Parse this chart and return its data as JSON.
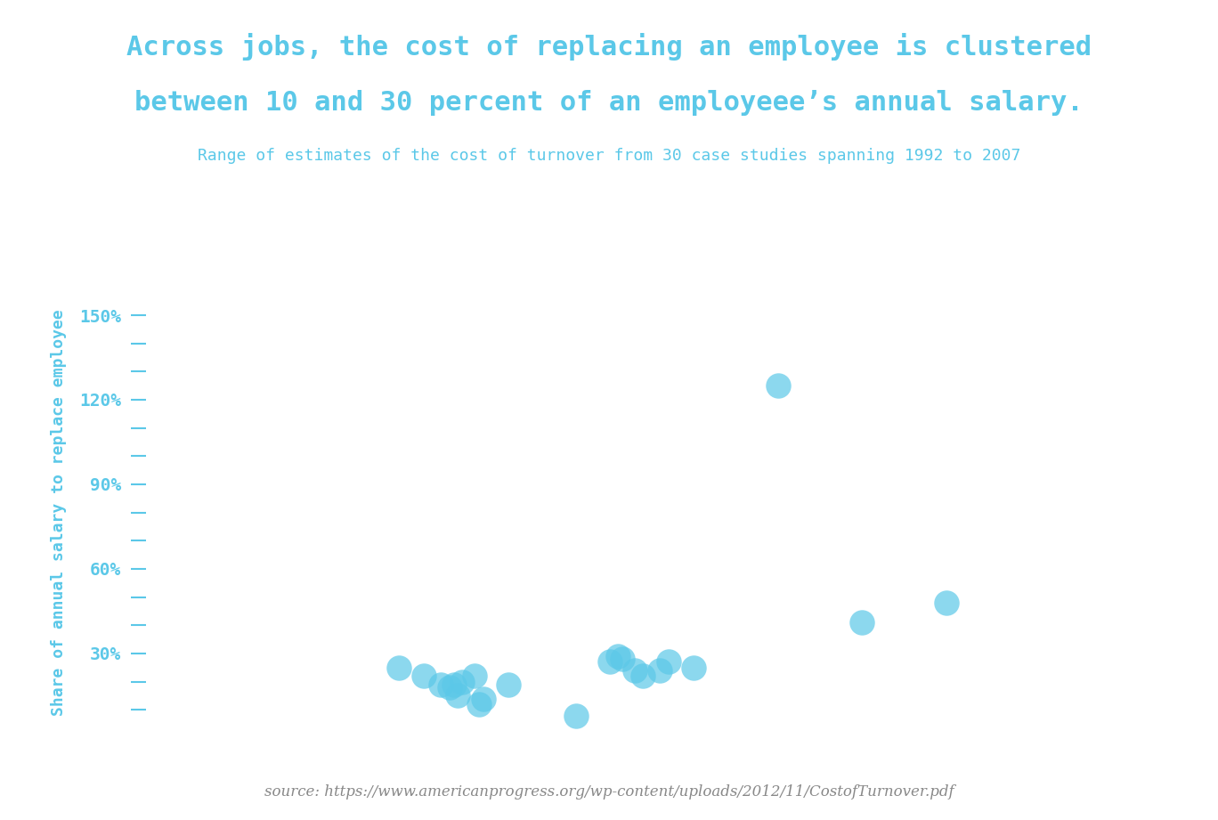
{
  "title_line1": "Across jobs, the cost of replacing an employee is clustered",
  "title_line2": "between 10 and 30 percent of an employeee’s annual salary.",
  "subtitle": "Range of estimates of the cost of turnover from 30 case studies spanning 1992 to 2007",
  "ylabel": "Share of annual salary to replace employee",
  "source": "source: https://www.americanprogress.org/wp-content/uploads/2012/11/CostofTurnover.pdf",
  "title_color": "#5bc8e8",
  "subtitle_color": "#5bc8e8",
  "ylabel_color": "#5bc8e8",
  "source_color": "#888888",
  "dot_color": "#5bc8e8",
  "axis_color": "#5bc8e8",
  "background_color": "#ffffff",
  "scatter_x": [
    3,
    3.3,
    3.5,
    3.6,
    3.65,
    3.7,
    3.75,
    3.9,
    3.95,
    4.0,
    4.3,
    5.1,
    5.5,
    5.6,
    5.65,
    5.8,
    5.9,
    6.1,
    6.2,
    6.5,
    7.5,
    8.5,
    9.5
  ],
  "scatter_y": [
    25,
    22,
    19,
    18,
    19,
    15,
    20,
    22,
    12,
    14,
    19,
    8,
    27,
    29,
    28,
    24,
    22,
    24,
    27,
    25,
    125,
    41,
    48
  ],
  "ylim": [
    0,
    160
  ],
  "all_yticks": [
    10,
    20,
    30,
    40,
    50,
    60,
    70,
    80,
    90,
    100,
    110,
    120,
    130,
    140,
    150
  ],
  "labeled_yticks": [
    30,
    60,
    90,
    120,
    150
  ],
  "xlim": [
    0,
    12
  ],
  "title_fontsize": 22,
  "subtitle_fontsize": 13,
  "ylabel_fontsize": 13,
  "source_fontsize": 12
}
